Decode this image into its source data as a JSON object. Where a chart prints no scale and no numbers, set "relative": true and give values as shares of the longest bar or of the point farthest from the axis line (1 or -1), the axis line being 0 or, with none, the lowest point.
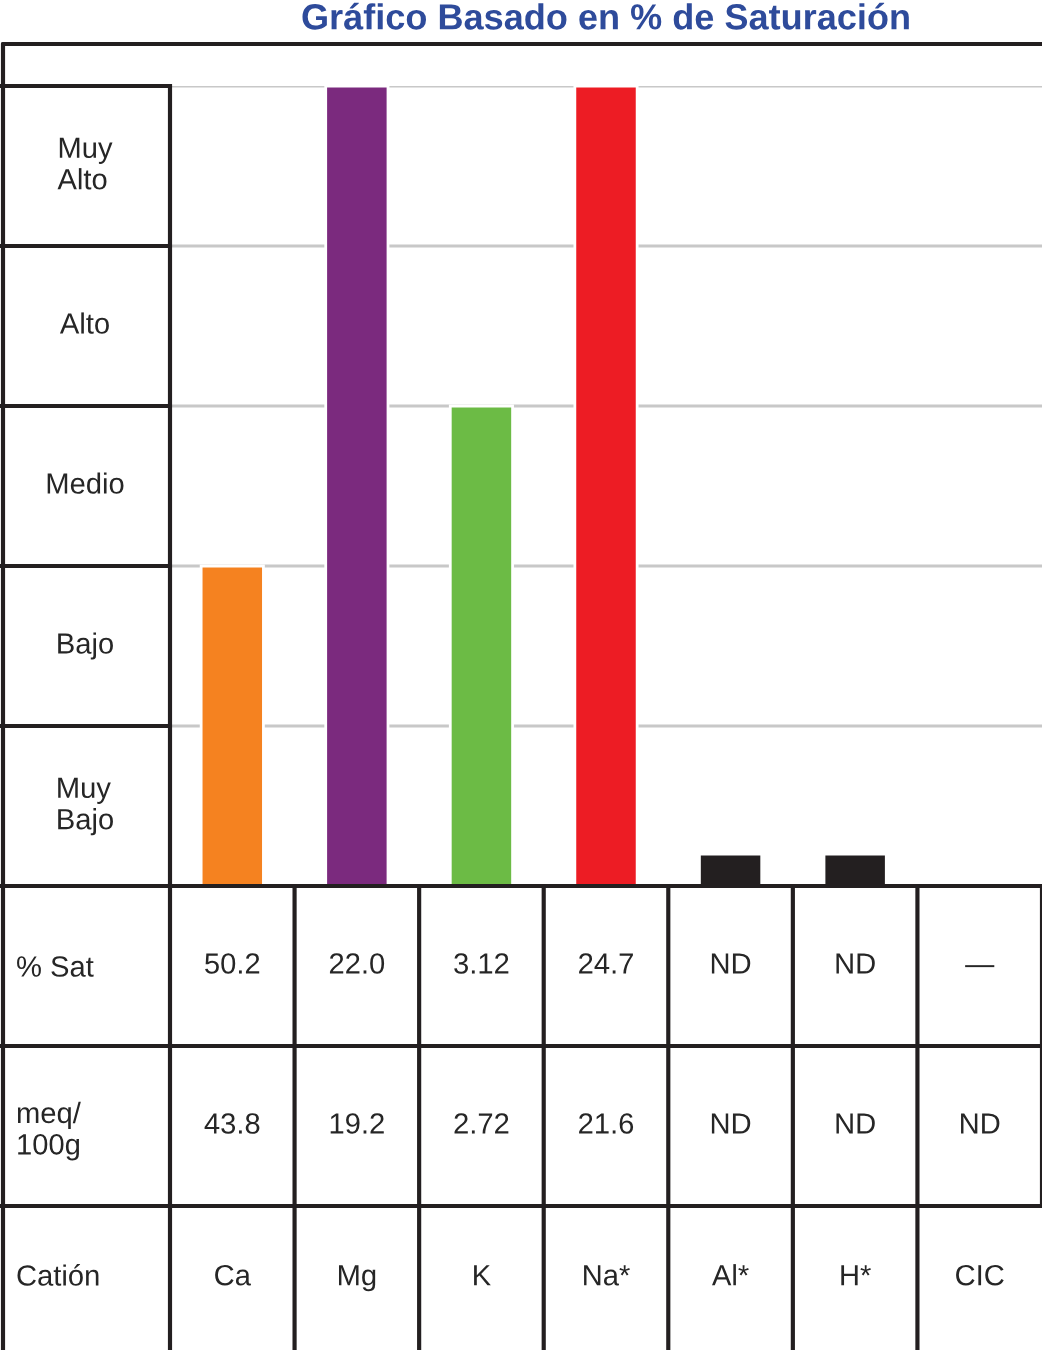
{
  "chart_data": [
    {
      "type": "bar",
      "title": "Gráfico Basado en % de Saturación",
      "categories": [
        "Ca",
        "Mg",
        "K",
        "Na*",
        "Al*",
        "H*",
        "CIC"
      ],
      "values": [
        0.4,
        1,
        0.6,
        1,
        0.04,
        0.04,
        null
      ],
      "colors": [
        "#f58220",
        "#7b2a7e",
        "#6cbb45",
        "#ed1c24",
        "#231f20",
        "#231f20",
        "#231f20"
      ],
      "relative": true,
      "ref_lines": [
        {
          "axis": "y",
          "value": 0.2,
          "color": "#c8c8c8"
        },
        {
          "axis": "y",
          "value": 0.4,
          "color": "#c8c8c8"
        },
        {
          "axis": "y",
          "value": 0.6,
          "color": "#c8c8c8"
        },
        {
          "axis": "y",
          "value": 0.8,
          "color": "#c8c8c8"
        },
        {
          "axis": "y",
          "value": 1,
          "color": "#c8c8c8"
        }
      ],
      "annotations": [
        "Muy\nBajo",
        "Bajo",
        "Medio",
        "Alto",
        "Muy\nAlto"
      ]
    },
    {
      "type": "heatmap",
      "xlabel": "Catión",
      "categories": [
        null,
        null,
        null,
        null,
        null,
        null,
        null
      ],
      "y_categories": [
        "% Sat",
        "meq/\n100g"
      ],
      "cells": [
        [
          null,
          null,
          null,
          null,
          null,
          null,
          null
        ],
        [
          null,
          null,
          null,
          null,
          null,
          null,
          null
        ]
      ],
      "cell_labels": [
        [
          "50.2",
          "22.0",
          "3.12",
          "24.7",
          "ND",
          "ND",
          "—"
        ],
        [
          "43.8",
          "19.2",
          "2.72",
          "21.6",
          "ND",
          "ND",
          "ND"
        ]
      ]
    }
  ]
}
